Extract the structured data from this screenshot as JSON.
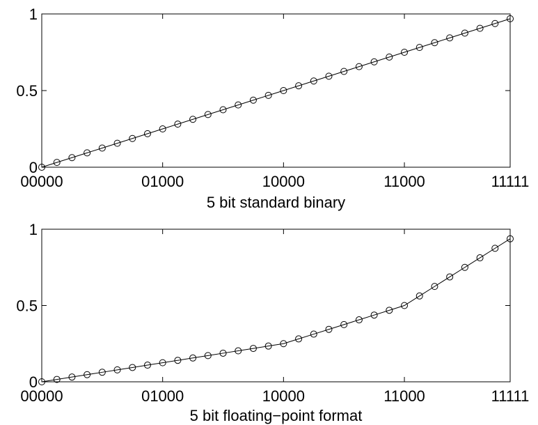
{
  "chart_data": [
    {
      "type": "line",
      "xlabel": "5 bit standard binary",
      "ylabel": "",
      "xlim": [
        0,
        31
      ],
      "ylim": [
        0,
        1
      ],
      "yticks": [
        0,
        0.5,
        1
      ],
      "ytick_labels": [
        "0",
        "0.5",
        "1"
      ],
      "xticks": [
        0,
        8,
        16,
        24,
        31
      ],
      "xtick_labels": [
        "00000",
        "01000",
        "10000",
        "11000",
        "11111"
      ],
      "grid": false,
      "marker": "circle",
      "x": [
        0,
        1,
        2,
        3,
        4,
        5,
        6,
        7,
        8,
        9,
        10,
        11,
        12,
        13,
        14,
        15,
        16,
        17,
        18,
        19,
        20,
        21,
        22,
        23,
        24,
        25,
        26,
        27,
        28,
        29,
        30,
        31
      ],
      "y": [
        0,
        0.03125,
        0.0625,
        0.09375,
        0.125,
        0.15625,
        0.1875,
        0.21875,
        0.25,
        0.28125,
        0.3125,
        0.34375,
        0.375,
        0.40625,
        0.4375,
        0.46875,
        0.5,
        0.53125,
        0.5625,
        0.59375,
        0.625,
        0.65625,
        0.6875,
        0.71875,
        0.75,
        0.78125,
        0.8125,
        0.84375,
        0.875,
        0.90625,
        0.9375,
        0.96875
      ]
    },
    {
      "type": "line",
      "xlabel": "5 bit floating−point format",
      "ylabel": "",
      "xlim": [
        0,
        31
      ],
      "ylim": [
        0,
        1
      ],
      "yticks": [
        0,
        0.5,
        1
      ],
      "ytick_labels": [
        "0",
        "0.5",
        "1"
      ],
      "xticks": [
        0,
        8,
        16,
        24,
        31
      ],
      "xtick_labels": [
        "00000",
        "01000",
        "10000",
        "11000",
        "11111"
      ],
      "grid": false,
      "marker": "circle",
      "x": [
        0,
        1,
        2,
        3,
        4,
        5,
        6,
        7,
        8,
        9,
        10,
        11,
        12,
        13,
        14,
        15,
        16,
        17,
        18,
        19,
        20,
        21,
        22,
        23,
        24,
        25,
        26,
        27,
        28,
        29,
        30,
        31
      ],
      "y": [
        0,
        0.015625,
        0.03125,
        0.046875,
        0.0625,
        0.078125,
        0.09375,
        0.109375,
        0.125,
        0.140625,
        0.15625,
        0.171875,
        0.1875,
        0.203125,
        0.21875,
        0.234375,
        0.25,
        0.28125,
        0.3125,
        0.34375,
        0.375,
        0.40625,
        0.4375,
        0.46875,
        0.5,
        0.5625,
        0.625,
        0.6875,
        0.75,
        0.8125,
        0.875,
        0.9375
      ]
    }
  ]
}
